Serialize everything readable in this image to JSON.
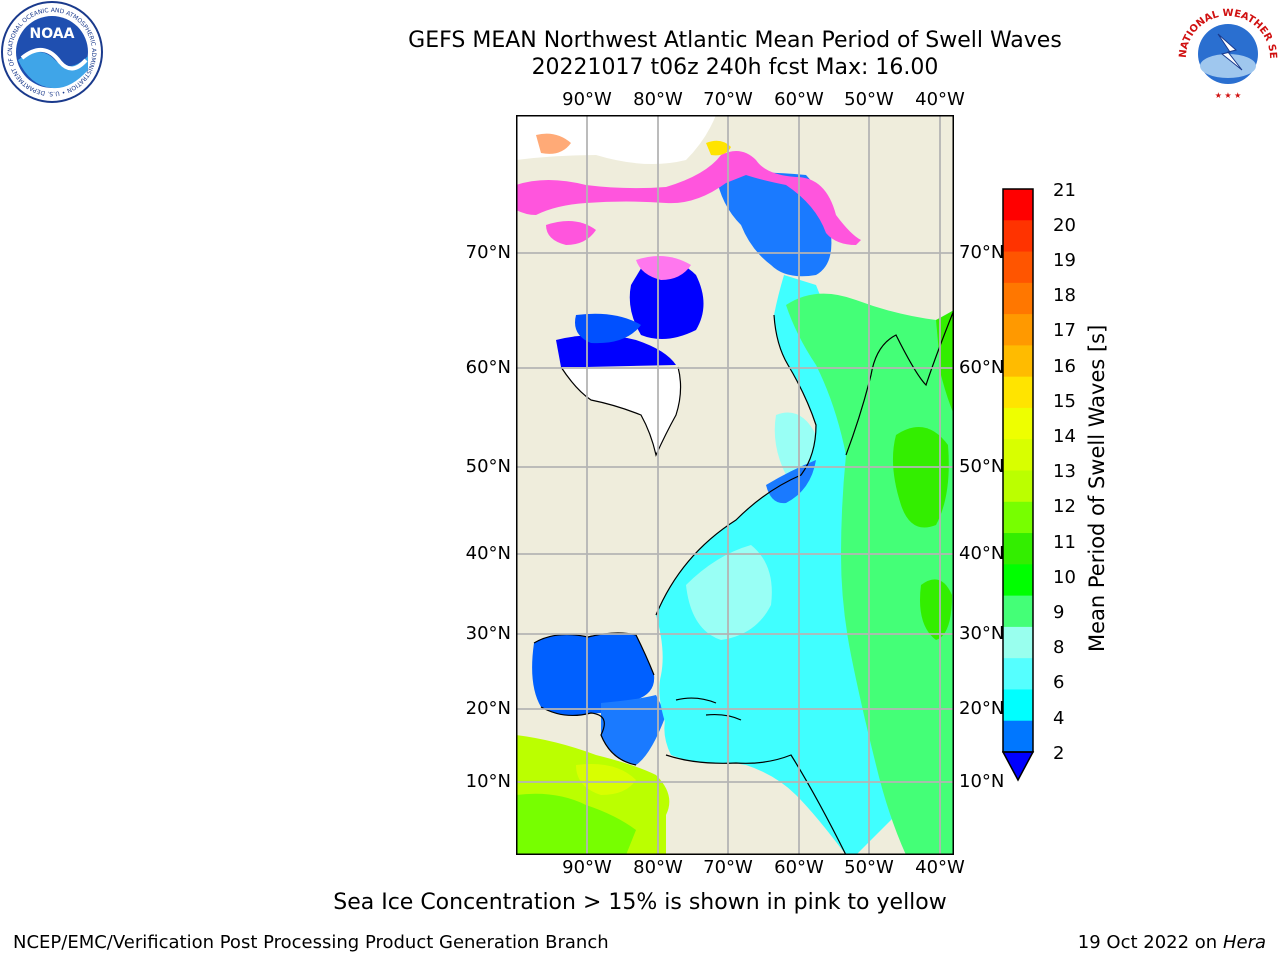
{
  "header": {
    "title_line1": "GEFS MEAN Northwest Atlantic Mean Period of Swell Waves",
    "title_line2": "20221017 t06z 240h fcst   Max: 16.00"
  },
  "logos": {
    "left": {
      "name": "NOARA-logo",
      "center_text": "NOAA",
      "ring_text": "NATIONAL OCEANIC AND ATMOSPHERIC ADMINISTRATION • U.S. DEPARTMENT OF COMMERCE"
    },
    "right": {
      "name": "nws-logo",
      "ring_text": "NATIONAL WEATHER SERVICE"
    }
  },
  "map": {
    "lon_labels": [
      "90°W",
      "80°W",
      "70°W",
      "60°W",
      "50°W",
      "40°W"
    ],
    "lat_labels": [
      "70°N",
      "60°N",
      "50°N",
      "40°N",
      "30°N",
      "20°N",
      "10°N"
    ],
    "colors": {
      "land": "#efeddc",
      "grid": "#b4b4b4",
      "coast": "#000000"
    }
  },
  "colorbar": {
    "label": "Mean Period of Swell Waves [s]",
    "ticks": [
      "21",
      "20",
      "19",
      "18",
      "17",
      "16",
      "15",
      "14",
      "13",
      "12",
      "11",
      "10",
      "9",
      "8",
      "6",
      "4",
      "2"
    ],
    "colors": [
      "#ff0000",
      "#ff3300",
      "#ff5500",
      "#ff7700",
      "#ff9900",
      "#ffbb00",
      "#ffe400",
      "#eeff00",
      "#d8ff00",
      "#bbff00",
      "#77ff00",
      "#33ee00",
      "#00ff00",
      "#44ff77",
      "#99ffee",
      "#55ffff",
      "#00ffff",
      "#0077ff",
      "#0000ff"
    ]
  },
  "notes": {
    "ice": "Sea Ice Concentration > 15% is shown in pink to yellow"
  },
  "footer": {
    "left": "NCEP/EMC/Verification Post Processing Product Generation Branch",
    "right_date": "19 Oct 2022 on",
    "right_machine": "Hera"
  }
}
